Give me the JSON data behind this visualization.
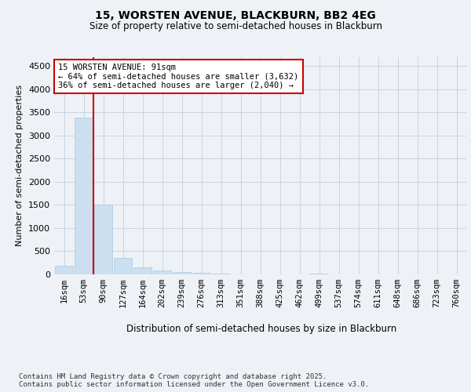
{
  "title1": "15, WORSTEN AVENUE, BLACKBURN, BB2 4EG",
  "title2": "Size of property relative to semi-detached houses in Blackburn",
  "xlabel": "Distribution of semi-detached houses by size in Blackburn",
  "ylabel": "Number of semi-detached properties",
  "categories": [
    "16sqm",
    "53sqm",
    "90sqm",
    "127sqm",
    "164sqm",
    "202sqm",
    "239sqm",
    "276sqm",
    "313sqm",
    "351sqm",
    "388sqm",
    "425sqm",
    "462sqm",
    "499sqm",
    "537sqm",
    "574sqm",
    "611sqm",
    "648sqm",
    "686sqm",
    "723sqm",
    "760sqm"
  ],
  "values": [
    185,
    3380,
    1510,
    360,
    145,
    80,
    55,
    40,
    15,
    0,
    0,
    0,
    0,
    20,
    0,
    0,
    0,
    0,
    0,
    0,
    0
  ],
  "bar_color": "#ccdff0",
  "bar_edge_color": "#a8c8e0",
  "vline_color": "#cc0000",
  "annotation_text": "15 WORSTEN AVENUE: 91sqm\n← 64% of semi-detached houses are smaller (3,632)\n36% of semi-detached houses are larger (2,040) →",
  "annotation_box_color": "#ffffff",
  "annotation_box_edge": "#cc0000",
  "ylim": [
    0,
    4700
  ],
  "yticks": [
    0,
    500,
    1000,
    1500,
    2000,
    2500,
    3000,
    3500,
    4000,
    4500
  ],
  "footer": "Contains HM Land Registry data © Crown copyright and database right 2025.\nContains public sector information licensed under the Open Government Licence v3.0.",
  "bg_color": "#eef2f7",
  "grid_color": "#c8d4e0"
}
